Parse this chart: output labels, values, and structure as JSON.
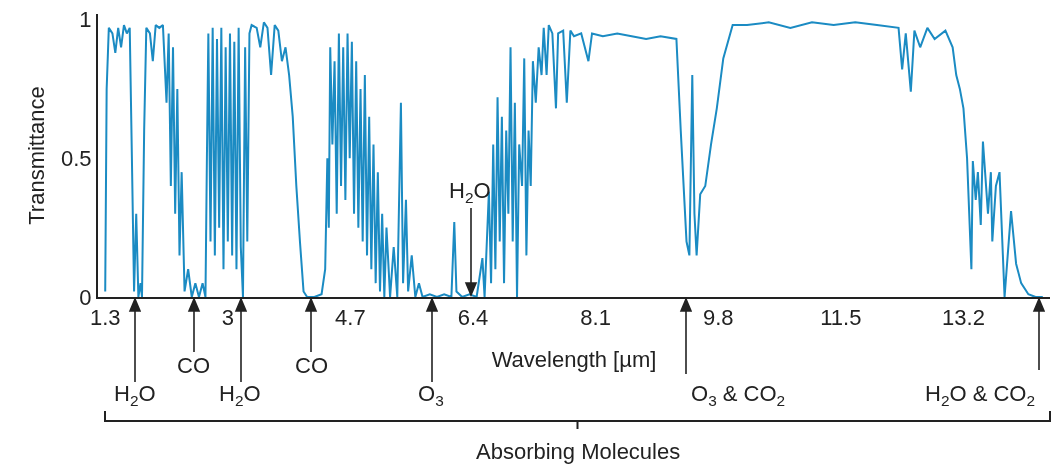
{
  "chart_data": {
    "type": "line",
    "xlabel": "Wavelength [µm]",
    "ylabel": "Transmittance",
    "xlim": [
      1.2,
      14.4
    ],
    "xticks": [
      1.3,
      3,
      4.7,
      6.4,
      8.1,
      9.8,
      11.5,
      13.2
    ],
    "ylim": [
      0,
      1.02
    ],
    "yticks": [
      0,
      0.5,
      1
    ],
    "grid": false,
    "x": [
      1.3,
      1.32,
      1.35,
      1.4,
      1.44,
      1.48,
      1.52,
      1.56,
      1.6,
      1.64,
      1.67,
      1.7,
      1.73,
      1.76,
      1.79,
      1.81,
      1.84,
      1.87,
      1.92,
      1.96,
      2.0,
      2.05,
      2.1,
      2.15,
      2.18,
      2.21,
      2.24,
      2.27,
      2.3,
      2.33,
      2.36,
      2.4,
      2.45,
      2.5,
      2.55,
      2.6,
      2.65,
      2.69,
      2.71,
      2.73,
      2.76,
      2.79,
      2.82,
      2.85,
      2.88,
      2.91,
      2.94,
      2.97,
      3.0,
      3.03,
      3.06,
      3.09,
      3.12,
      3.15,
      3.18,
      3.21,
      3.24,
      3.27,
      3.3,
      3.33,
      3.4,
      3.45,
      3.5,
      3.55,
      3.6,
      3.65,
      3.7,
      3.75,
      3.8,
      3.85,
      3.9,
      3.95,
      4.0,
      4.05,
      4.1,
      4.2,
      4.3,
      4.35,
      4.38,
      4.4,
      4.42,
      4.45,
      4.48,
      4.51,
      4.54,
      4.57,
      4.6,
      4.63,
      4.66,
      4.69,
      4.72,
      4.75,
      4.78,
      4.81,
      4.84,
      4.87,
      4.9,
      4.93,
      4.96,
      4.99,
      5.02,
      5.05,
      5.08,
      5.11,
      5.14,
      5.17,
      5.2,
      5.25,
      5.3,
      5.35,
      5.4,
      5.43,
      5.47,
      5.5,
      5.55,
      5.6,
      5.65,
      5.7,
      5.8,
      5.9,
      6.0,
      6.1,
      6.14,
      6.17,
      6.25,
      6.35,
      6.45,
      6.53,
      6.56,
      6.62,
      6.65,
      6.68,
      6.71,
      6.74,
      6.77,
      6.8,
      6.83,
      6.86,
      6.89,
      6.92,
      6.95,
      6.98,
      7.01,
      7.04,
      7.08,
      7.11,
      7.14,
      7.17,
      7.2,
      7.23,
      7.27,
      7.31,
      7.35,
      7.38,
      7.42,
      7.45,
      7.5,
      7.55,
      7.58,
      7.65,
      7.7,
      7.75,
      7.8,
      7.9,
      8.0,
      8.05,
      8.2,
      8.4,
      8.6,
      8.8,
      9.0,
      9.22,
      9.28,
      9.36,
      9.4,
      9.44,
      9.47,
      9.5,
      9.55,
      9.62,
      9.7,
      9.78,
      9.87,
      10.0,
      10.2,
      10.5,
      10.8,
      11.1,
      11.4,
      11.7,
      12.0,
      12.3,
      12.35,
      12.4,
      12.47,
      12.52,
      12.6,
      12.7,
      12.8,
      12.95,
      13.05,
      13.1,
      13.15,
      13.2,
      13.25,
      13.28,
      13.31,
      13.33,
      13.37,
      13.4,
      13.44,
      13.47,
      13.5,
      13.54,
      13.58,
      13.6,
      13.65,
      13.7,
      13.77,
      13.86,
      13.93,
      14.0,
      14.1,
      14.2,
      14.3
    ],
    "series": [
      {
        "color": "#1b8bc3",
        "values": [
          0.02,
          0.75,
          0.97,
          0.95,
          0.88,
          0.97,
          0.9,
          0.98,
          0.95,
          0.97,
          0.5,
          0.02,
          0.3,
          0.0,
          0.05,
          0.0,
          0.6,
          0.97,
          0.95,
          0.85,
          0.98,
          0.97,
          0.98,
          0.7,
          0.95,
          0.4,
          0.9,
          0.3,
          0.75,
          0.15,
          0.45,
          0.02,
          0.1,
          0.0,
          0.05,
          0.0,
          0.05,
          0.0,
          0.5,
          0.95,
          0.2,
          0.97,
          0.15,
          0.93,
          0.25,
          0.97,
          0.1,
          0.9,
          0.2,
          0.95,
          0.15,
          0.92,
          0.1,
          0.97,
          0.18,
          0.0,
          0.9,
          0.2,
          0.95,
          0.98,
          0.97,
          0.9,
          0.99,
          0.97,
          0.8,
          0.98,
          0.96,
          0.85,
          0.9,
          0.8,
          0.65,
          0.4,
          0.2,
          0.02,
          0.0,
          0.0,
          0.01,
          0.1,
          0.5,
          0.25,
          0.9,
          0.55,
          0.85,
          0.3,
          0.95,
          0.4,
          0.9,
          0.35,
          0.95,
          0.5,
          0.92,
          0.3,
          0.85,
          0.25,
          0.75,
          0.2,
          0.8,
          0.15,
          0.65,
          0.1,
          0.55,
          0.05,
          0.45,
          0.02,
          0.3,
          0.0,
          0.25,
          0.0,
          0.18,
          0.0,
          0.7,
          0.05,
          0.35,
          0.02,
          0.15,
          0.0,
          0.05,
          0.0,
          0.01,
          0.0,
          0.01,
          0.0,
          0.27,
          0.02,
          0.0,
          0.01,
          0.0,
          0.14,
          0.0,
          0.38,
          0.05,
          0.55,
          0.1,
          0.72,
          0.2,
          0.65,
          0.05,
          0.6,
          0.3,
          0.9,
          0.2,
          0.7,
          0.0,
          0.55,
          0.4,
          0.86,
          0.15,
          0.6,
          0.4,
          0.85,
          0.7,
          0.9,
          0.8,
          0.97,
          0.8,
          0.98,
          0.95,
          0.68,
          0.95,
          0.96,
          0.7,
          0.96,
          0.94,
          0.95,
          0.85,
          0.95,
          0.94,
          0.95,
          0.94,
          0.93,
          0.94,
          0.93,
          0.6,
          0.2,
          0.15,
          0.8,
          0.3,
          0.15,
          0.37,
          0.4,
          0.55,
          0.68,
          0.86,
          0.98,
          0.98,
          0.99,
          0.97,
          0.99,
          0.98,
          0.99,
          0.98,
          0.97,
          0.82,
          0.95,
          0.74,
          0.96,
          0.9,
          0.97,
          0.93,
          0.96,
          0.9,
          0.8,
          0.75,
          0.68,
          0.5,
          0.3,
          0.1,
          0.49,
          0.35,
          0.45,
          0.26,
          0.56,
          0.45,
          0.3,
          0.45,
          0.2,
          0.4,
          0.45,
          0.0,
          0.31,
          0.12,
          0.05,
          0.01,
          0.0,
          0.0
        ]
      }
    ],
    "annotations": [
      "H$_{2}$O",
      "CO",
      "H$_{2}$O",
      "CO",
      "O$_{3}$",
      "H$_{2}$O",
      "O$_{3}$ & CO$_{2}$",
      "H$_{2}$O & CO$_{2}$",
      "Absorbing Molecules"
    ]
  }
}
